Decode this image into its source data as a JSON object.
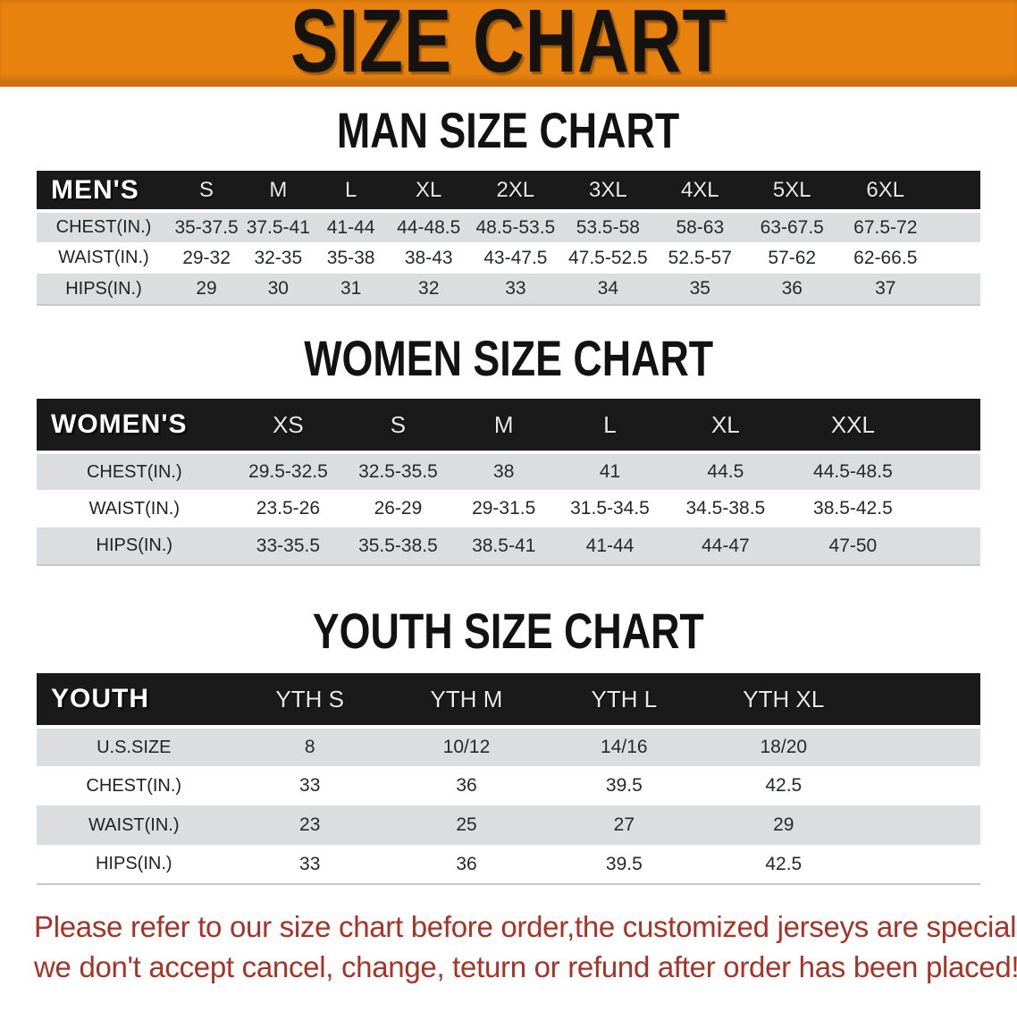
{
  "banner": {
    "title": "SIZE CHART",
    "bg_color": "#E8820F"
  },
  "sections": [
    {
      "id": "men",
      "heading": "MAN SIZE CHART",
      "table": {
        "corner_label": "MEN'S",
        "columns": [
          "S",
          "M",
          "L",
          "XL",
          "2XL",
          "3XL",
          "4XL",
          "5XL",
          "6XL"
        ],
        "rows": [
          {
            "label": "CHEST(IN.)",
            "values": [
              "35-37.5",
              "37.5-41",
              "41-44",
              "44-48.5",
              "48.5-53.5",
              "53.5-58",
              "58-63",
              "63-67.5",
              "67.5-72"
            ]
          },
          {
            "label": "WAIST(IN.)",
            "values": [
              "29-32",
              "32-35",
              "35-38",
              "38-43",
              "43-47.5",
              "47.5-52.5",
              "52.5-57",
              "57-62",
              "62-66.5"
            ]
          },
          {
            "label": "HIPS(IN.)",
            "values": [
              "29",
              "30",
              "31",
              "32",
              "33",
              "34",
              "35",
              "36",
              "37"
            ]
          }
        ]
      }
    },
    {
      "id": "women",
      "heading": "WOMEN SIZE CHART",
      "table": {
        "corner_label": "WOMEN'S",
        "columns": [
          "XS",
          "S",
          "M",
          "L",
          "XL",
          "XXL"
        ],
        "rows": [
          {
            "label": "CHEST(IN.)",
            "values": [
              "29.5-32.5",
              "32.5-35.5",
              "38",
              "41",
              "44.5",
              "44.5-48.5"
            ]
          },
          {
            "label": "WAIST(IN.)",
            "values": [
              "23.5-26",
              "26-29",
              "29-31.5",
              "31.5-34.5",
              "34.5-38.5",
              "38.5-42.5"
            ]
          },
          {
            "label": "HIPS(IN.)",
            "values": [
              "33-35.5",
              "35.5-38.5",
              "38.5-41",
              "41-44",
              "44-47",
              "47-50"
            ]
          }
        ]
      }
    },
    {
      "id": "youth",
      "heading": "YOUTH SIZE CHART",
      "table": {
        "corner_label": "YOUTH",
        "columns": [
          "YTH S",
          "YTH M",
          "YTH L",
          "YTH XL"
        ],
        "rows": [
          {
            "label": "U.S.SIZE",
            "values": [
              "8",
              "10/12",
              "14/16",
              "18/20"
            ]
          },
          {
            "label": "CHEST(IN.)",
            "values": [
              "33",
              "36",
              "39.5",
              "42.5"
            ]
          },
          {
            "label": "WAIST(IN.)",
            "values": [
              "23",
              "25",
              "27",
              "29"
            ]
          },
          {
            "label": "HIPS(IN.)",
            "values": [
              "33",
              "36",
              "39.5",
              "42.5"
            ]
          }
        ]
      }
    }
  ],
  "footer": {
    "line1": "Please refer to our size chart before order,the customized jerseys are special products,",
    "line2": "we don't accept cancel, change, teturn or refund after order has been placed!",
    "text_color": "#A93226"
  },
  "colors": {
    "header_bar": "#1A1A1A",
    "row_stripe": "#DCDDDE",
    "banner_border": "#CF7110"
  }
}
